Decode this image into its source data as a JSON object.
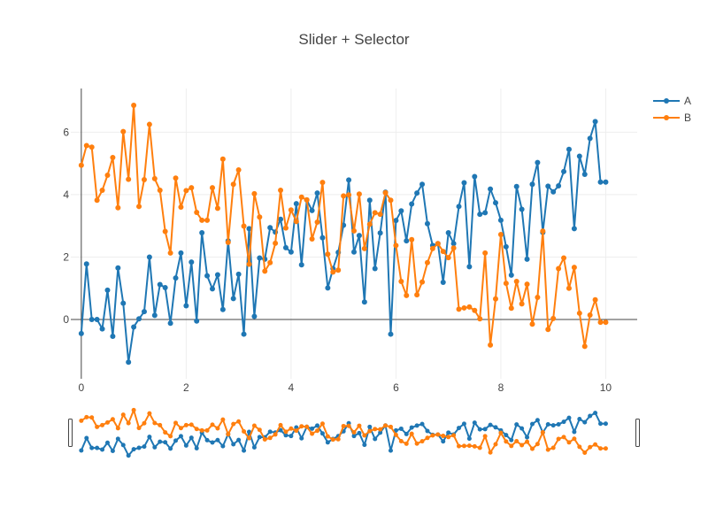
{
  "chart_data": {
    "type": "line",
    "title": "Slider + Selector",
    "xlabel": "",
    "ylabel": "",
    "xlim": [
      -0.2,
      10.6
    ],
    "ylim": [
      -1.9,
      7.4
    ],
    "x_ticks": [
      0,
      2,
      4,
      6,
      8,
      10
    ],
    "y_ticks": [
      0,
      2,
      4,
      6
    ],
    "grid": true,
    "legend_position": "top-right",
    "range_slider": true,
    "series": [
      {
        "name": "A",
        "color": "#1f77b4",
        "x": [
          0,
          0.1,
          0.2,
          0.3,
          0.4,
          0.5,
          0.6,
          0.7,
          0.8,
          0.9,
          1.0,
          1.1,
          1.2,
          1.3,
          1.4,
          1.5,
          1.6,
          1.7,
          1.8,
          1.9,
          2.0,
          2.1,
          2.2,
          2.3,
          2.4,
          2.5,
          2.6,
          2.7,
          2.8,
          2.9,
          3.0,
          3.1,
          3.2,
          3.3,
          3.4,
          3.5,
          3.6,
          3.7,
          3.8,
          3.9,
          4.0,
          4.1,
          4.2,
          4.3,
          4.4,
          4.5,
          4.6,
          4.7,
          4.8,
          4.9,
          5.0,
          5.1,
          5.2,
          5.3,
          5.4,
          5.5,
          5.6,
          5.7,
          5.8,
          5.9,
          6.0,
          6.1,
          6.2,
          6.3,
          6.4,
          6.5,
          6.6,
          6.7,
          6.8,
          6.9,
          7.0,
          7.1,
          7.2,
          7.3,
          7.4,
          7.5,
          7.6,
          7.7,
          7.8,
          7.9,
          8.0,
          8.1,
          8.2,
          8.3,
          8.4,
          8.5,
          8.6,
          8.7,
          8.8,
          8.9,
          9.0,
          9.1,
          9.2,
          9.3,
          9.4,
          9.5,
          9.6,
          9.7,
          9.8,
          9.9,
          10.0
        ],
        "y": [
          -0.45,
          1.78,
          0.0,
          0.0,
          -0.3,
          0.94,
          -0.54,
          1.65,
          0.52,
          -1.37,
          -0.24,
          0.02,
          0.25,
          2.0,
          0.13,
          1.12,
          1.02,
          -0.12,
          1.33,
          2.13,
          0.44,
          1.84,
          -0.05,
          2.78,
          1.4,
          0.98,
          1.43,
          0.32,
          2.52,
          0.67,
          1.45,
          -0.47,
          2.91,
          0.1,
          1.97,
          1.93,
          2.94,
          2.8,
          3.21,
          2.3,
          2.16,
          3.71,
          1.75,
          3.83,
          3.49,
          4.05,
          2.62,
          1.01,
          1.63,
          2.15,
          3.02,
          4.47,
          2.16,
          2.69,
          0.56,
          3.82,
          1.63,
          2.77,
          4.08,
          -0.47,
          3.17,
          3.48,
          2.52,
          3.7,
          4.05,
          4.33,
          3.07,
          2.37,
          2.43,
          1.19,
          2.78,
          2.43,
          3.62,
          4.38,
          1.69,
          4.58,
          3.37,
          3.42,
          4.18,
          3.74,
          3.18,
          2.33,
          1.42,
          4.26,
          3.53,
          1.93,
          4.33,
          5.03,
          2.79,
          4.27,
          4.09,
          4.28,
          4.74,
          5.45,
          2.91,
          5.23,
          4.65,
          5.8,
          6.34,
          4.4,
          4.4
        ]
      },
      {
        "name": "B",
        "color": "#ff7f0e",
        "x": [
          0,
          0.1,
          0.2,
          0.3,
          0.4,
          0.5,
          0.6,
          0.7,
          0.8,
          0.9,
          1.0,
          1.1,
          1.2,
          1.3,
          1.4,
          1.5,
          1.6,
          1.7,
          1.8,
          1.9,
          2.0,
          2.1,
          2.2,
          2.3,
          2.4,
          2.5,
          2.6,
          2.7,
          2.8,
          2.9,
          3.0,
          3.1,
          3.2,
          3.3,
          3.4,
          3.5,
          3.6,
          3.7,
          3.8,
          3.9,
          4.0,
          4.1,
          4.2,
          4.3,
          4.4,
          4.5,
          4.6,
          4.7,
          4.8,
          4.9,
          5.0,
          5.1,
          5.2,
          5.3,
          5.4,
          5.5,
          5.6,
          5.7,
          5.8,
          5.9,
          6.0,
          6.1,
          6.2,
          6.3,
          6.4,
          6.5,
          6.6,
          6.7,
          6.8,
          6.9,
          7.0,
          7.1,
          7.2,
          7.3,
          7.4,
          7.5,
          7.6,
          7.7,
          7.8,
          7.9,
          8.0,
          8.1,
          8.2,
          8.3,
          8.4,
          8.5,
          8.6,
          8.7,
          8.8,
          8.9,
          9.0,
          9.1,
          9.2,
          9.3,
          9.4,
          9.5,
          9.6,
          9.7,
          9.8,
          9.9,
          10.0
        ],
        "y": [
          4.94,
          5.57,
          5.52,
          3.82,
          4.14,
          4.62,
          5.19,
          3.58,
          6.02,
          4.49,
          6.86,
          3.62,
          4.48,
          6.25,
          4.51,
          4.14,
          2.82,
          2.13,
          4.53,
          3.6,
          4.13,
          4.22,
          3.43,
          3.18,
          3.18,
          4.22,
          3.56,
          5.14,
          2.47,
          4.33,
          4.79,
          2.99,
          1.77,
          4.03,
          3.28,
          1.55,
          1.82,
          2.44,
          4.14,
          2.93,
          3.51,
          3.14,
          3.92,
          3.83,
          2.58,
          3.12,
          4.39,
          2.09,
          1.52,
          1.58,
          3.96,
          3.99,
          2.84,
          4.02,
          2.27,
          3.05,
          3.42,
          3.37,
          4.06,
          3.82,
          2.37,
          1.22,
          0.77,
          2.56,
          0.79,
          1.2,
          1.82,
          2.27,
          2.43,
          2.18,
          1.98,
          2.29,
          0.33,
          0.37,
          0.4,
          0.29,
          0.02,
          2.13,
          -0.82,
          0.66,
          2.72,
          1.16,
          0.36,
          1.22,
          0.5,
          1.13,
          -0.15,
          0.71,
          2.83,
          -0.32,
          0.03,
          1.63,
          1.97,
          1.0,
          1.67,
          0.2,
          -0.86,
          0.14,
          0.63,
          -0.09,
          -0.09
        ]
      }
    ]
  }
}
